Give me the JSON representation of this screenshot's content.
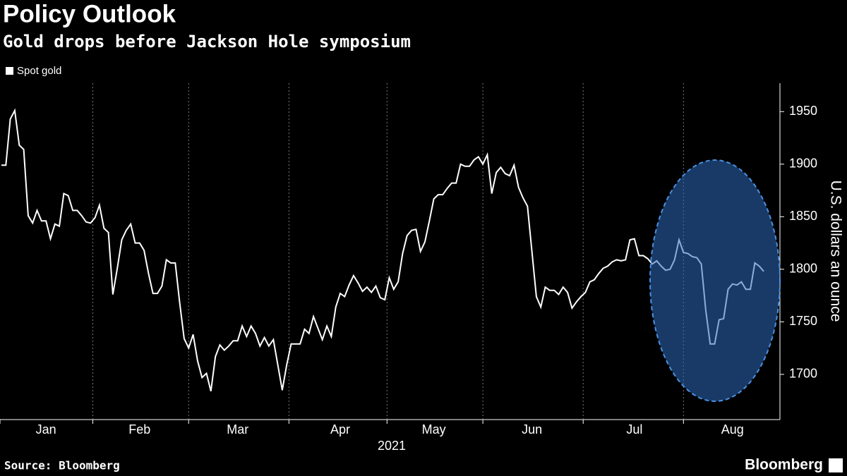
{
  "chart_data": {
    "type": "line",
    "title": "Policy Outlook",
    "subtitle": "Gold drops before Jackson Hole symposium",
    "source": "Source: Bloomberg",
    "brand": "Bloomberg",
    "ylabel": "U.S. dollars an ounce",
    "xlabel": "2021",
    "grid": true,
    "categories": [
      null,
      null,
      null,
      null,
      null,
      null,
      null,
      null,
      null,
      null,
      "Jan",
      null,
      null,
      null,
      null,
      null,
      null,
      null,
      null,
      null,
      null,
      null,
      null,
      null,
      null,
      null,
      null,
      null,
      null,
      null,
      null,
      "Feb",
      null,
      null,
      null,
      null,
      null,
      null,
      null,
      null,
      null,
      null,
      null,
      null,
      null,
      null,
      null,
      null,
      null,
      null,
      null,
      null,
      null,
      "Mar",
      null,
      null,
      null,
      null,
      null,
      null,
      null,
      null,
      null,
      null,
      null,
      null,
      null,
      null,
      null,
      null,
      null,
      null,
      null,
      null,
      null,
      null,
      "Apr",
      null,
      null,
      null,
      null,
      null,
      null,
      null,
      null,
      null,
      null,
      null,
      null,
      null,
      null,
      null,
      null,
      null,
      null,
      null,
      null,
      "May",
      null,
      null,
      null,
      null,
      null,
      null,
      null,
      null,
      null,
      null,
      null,
      null,
      null,
      null,
      null,
      null,
      null,
      null,
      null,
      null,
      null,
      "Jun",
      null,
      null,
      null,
      null,
      null,
      null,
      null,
      null,
      null,
      null,
      null,
      null,
      null,
      null,
      null,
      null,
      null,
      null,
      null,
      null,
      null,
      null,
      "Jul",
      null,
      null,
      null,
      null,
      null,
      null,
      null,
      null,
      null,
      null,
      null,
      null,
      null,
      null,
      null,
      null,
      null,
      null,
      null,
      null,
      null,
      "Aug",
      null,
      null,
      null,
      null,
      null,
      null,
      null
    ],
    "series": [
      {
        "name": "Spot gold",
        "color": "#ffffff",
        "values": [
          1899,
          1899,
          1943,
          1951,
          1918,
          1914,
          1851,
          1844,
          1856,
          1846,
          1846,
          1829,
          1843,
          1841,
          1872,
          1870,
          1856,
          1856,
          1851,
          1845,
          1844,
          1849,
          1861,
          1839,
          1835,
          1776,
          1801,
          1828,
          1837,
          1843,
          1825,
          1825,
          1818,
          1796,
          1777,
          1777,
          1784,
          1809,
          1806,
          1806,
          1768,
          1734,
          1725,
          1738,
          1713,
          1697,
          1701,
          1684,
          1717,
          1728,
          1723,
          1727,
          1732,
          1732,
          1746,
          1736,
          1746,
          1739,
          1727,
          1735,
          1727,
          1733,
          1709,
          1685,
          1709,
          1729,
          1729,
          1729,
          1743,
          1739,
          1755,
          1744,
          1733,
          1746,
          1736,
          1764,
          1777,
          1774,
          1785,
          1794,
          1787,
          1779,
          1783,
          1778,
          1784,
          1773,
          1771,
          1792,
          1781,
          1788,
          1815,
          1832,
          1837,
          1838,
          1817,
          1826,
          1846,
          1867,
          1871,
          1871,
          1877,
          1882,
          1882,
          1900,
          1898,
          1898,
          1904,
          1907,
          1900,
          1909,
          1872,
          1892,
          1897,
          1891,
          1889,
          1899,
          1878,
          1868,
          1860,
          1817,
          1774,
          1764,
          1783,
          1780,
          1780,
          1776,
          1783,
          1778,
          1763,
          1769,
          1774,
          1778,
          1788,
          1790,
          1796,
          1801,
          1803,
          1807,
          1809,
          1808,
          1809,
          1828,
          1829,
          1813,
          1813,
          1810,
          1805,
          1808,
          1803,
          1799,
          1800,
          1809,
          1828,
          1816,
          1815,
          1812,
          1811,
          1805,
          1761,
          1729,
          1729,
          1752,
          1753,
          1781,
          1786,
          1785,
          1788,
          1781,
          1781,
          1806,
          1803,
          1798
        ]
      }
    ],
    "ylim": [
      1657,
      1977
    ],
    "yticks": [
      1700,
      1750,
      1800,
      1850,
      1900,
      1950
    ]
  }
}
